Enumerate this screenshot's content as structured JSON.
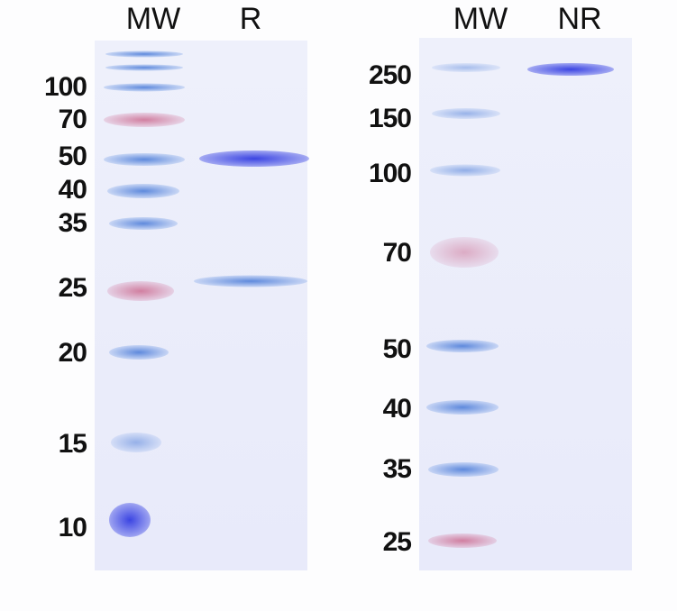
{
  "panels": [
    {
      "lanes": [
        "MW",
        "R"
      ],
      "markers": [
        "100",
        "70",
        "50",
        "40",
        "35",
        "25",
        "20",
        "15",
        "10"
      ]
    },
    {
      "lanes": [
        "MW",
        "NR"
      ],
      "markers": [
        "250",
        "150",
        "100",
        "70",
        "50",
        "40",
        "35",
        "25"
      ]
    }
  ],
  "colors": {
    "gel": "#eceefb",
    "band": "#3a48e0",
    "marker_pink": "#c8608a"
  }
}
